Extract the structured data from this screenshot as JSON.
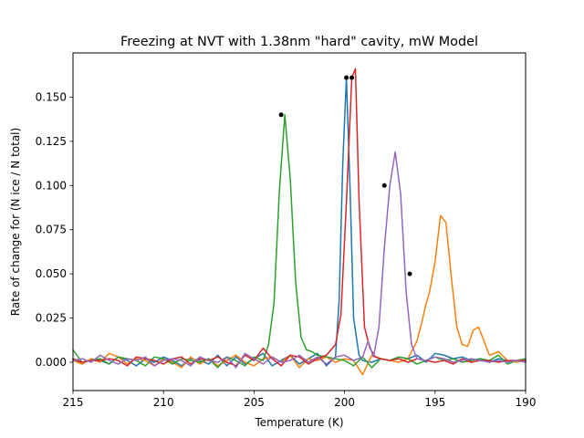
{
  "chart_data": {
    "type": "line",
    "title": "Freezing at NVT with 1.38nm \"hard\" cavity, mW Model",
    "xlabel": "Temperature (K)",
    "ylabel": "Rate of change for (N ice / N total)",
    "xlim": [
      215,
      190
    ],
    "ylim": [
      -0.016,
      0.175
    ],
    "x_ticks": [
      215,
      210,
      205,
      200,
      195,
      190
    ],
    "y_ticks": [
      0.0,
      0.025,
      0.05,
      0.075,
      0.1,
      0.125,
      0.15
    ],
    "y_tick_labels": [
      "0.000",
      "0.025",
      "0.050",
      "0.075",
      "0.100",
      "0.125",
      "0.150"
    ],
    "grid": false,
    "series": [
      {
        "color": "#1f77b4",
        "points": [
          [
            215,
            0.002
          ],
          [
            214.5,
            -0.001
          ],
          [
            214,
            0.002
          ],
          [
            213.5,
            0.001
          ],
          [
            213,
            -0.001
          ],
          [
            212.5,
            0.003
          ],
          [
            212,
            0.001
          ],
          [
            211.5,
            -0.002
          ],
          [
            211,
            0.002
          ],
          [
            210.5,
            0.0
          ],
          [
            210,
            0.003
          ],
          [
            209.5,
            0.001
          ],
          [
            209,
            -0.002
          ],
          [
            208.5,
            0.002
          ],
          [
            208,
            0.001
          ],
          [
            207.5,
            -0.001
          ],
          [
            207,
            0.004
          ],
          [
            206.5,
            -0.002
          ],
          [
            206,
            0.003
          ],
          [
            205.5,
            -0.001
          ],
          [
            205,
            0.002
          ],
          [
            204.5,
            0.005
          ],
          [
            204,
            -0.002
          ],
          [
            203.5,
            0.001
          ],
          [
            203,
            0.004
          ],
          [
            202.5,
            -0.001
          ],
          [
            202,
            0.002
          ],
          [
            201.5,
            0.005
          ],
          [
            201,
            -0.002
          ],
          [
            200.5,
            0.003
          ],
          [
            200.3,
            0.035
          ],
          [
            200.1,
            0.112
          ],
          [
            199.9,
            0.161
          ],
          [
            199.7,
            0.1
          ],
          [
            199.5,
            0.025
          ],
          [
            199.2,
            0.004
          ],
          [
            199,
            0.001
          ],
          [
            198.5,
            0.0
          ],
          [
            198,
            0.002
          ],
          [
            197.5,
            0.001
          ],
          [
            197,
            0.003
          ],
          [
            196.5,
            0.002
          ],
          [
            196,
            0.004
          ],
          [
            195.5,
            0.0
          ],
          [
            195,
            0.005
          ],
          [
            194.5,
            0.004
          ],
          [
            194,
            0.002
          ],
          [
            193.5,
            0.003
          ],
          [
            193,
            0.001
          ],
          [
            192.5,
            0.002
          ],
          [
            192,
            0.0
          ],
          [
            191.5,
            0.002
          ],
          [
            191,
            0.001
          ],
          [
            190.5,
            0.001
          ],
          [
            190,
            0.001
          ]
        ]
      },
      {
        "color": "#ff7f0e",
        "points": [
          [
            215,
            0.001
          ],
          [
            214.5,
            -0.001
          ],
          [
            214,
            0.002
          ],
          [
            213.5,
            0.0
          ],
          [
            213,
            0.005
          ],
          [
            212.5,
            0.003
          ],
          [
            212,
            -0.001
          ],
          [
            211.5,
            0.002
          ],
          [
            211,
            0.001
          ],
          [
            210.5,
            -0.002
          ],
          [
            210,
            0.002
          ],
          [
            209.5,
            0.0
          ],
          [
            209,
            -0.003
          ],
          [
            208.5,
            0.003
          ],
          [
            208,
            -0.001
          ],
          [
            207.5,
            0.002
          ],
          [
            207,
            -0.002
          ],
          [
            206.5,
            0.001
          ],
          [
            206,
            0.004
          ],
          [
            205.5,
            0.0
          ],
          [
            205,
            -0.002
          ],
          [
            204.5,
            0.002
          ],
          [
            204,
            0.003
          ],
          [
            203.5,
            0.0
          ],
          [
            203,
            0.004
          ],
          [
            202.5,
            -0.003
          ],
          [
            202,
            0.002
          ],
          [
            201.5,
            0.001
          ],
          [
            201,
            0.003
          ],
          [
            200.5,
            0.0
          ],
          [
            200,
            0.002
          ],
          [
            199.5,
            0.001
          ],
          [
            199,
            -0.007
          ],
          [
            198.5,
            0.004
          ],
          [
            198,
            0.002
          ],
          [
            197.5,
            0.001
          ],
          [
            197,
            0.0
          ],
          [
            196.5,
            0.002
          ],
          [
            196,
            0.012
          ],
          [
            195.7,
            0.024
          ],
          [
            195.5,
            0.033
          ],
          [
            195.3,
            0.04
          ],
          [
            195,
            0.057
          ],
          [
            194.7,
            0.083
          ],
          [
            194.4,
            0.079
          ],
          [
            194.1,
            0.048
          ],
          [
            193.8,
            0.02
          ],
          [
            193.5,
            0.01
          ],
          [
            193.2,
            0.009
          ],
          [
            192.9,
            0.018
          ],
          [
            192.6,
            0.02
          ],
          [
            192.3,
            0.012
          ],
          [
            192,
            0.004
          ],
          [
            191.5,
            0.006
          ],
          [
            191,
            0.001
          ],
          [
            190.5,
            0.0
          ],
          [
            190,
            0.001
          ]
        ]
      },
      {
        "color": "#2ca02c",
        "points": [
          [
            215,
            0.007
          ],
          [
            214.5,
            0.0
          ],
          [
            214,
            0.001
          ],
          [
            213.5,
            0.002
          ],
          [
            213,
            -0.001
          ],
          [
            212.5,
            0.003
          ],
          [
            212,
            0.002
          ],
          [
            211.5,
            0.001
          ],
          [
            211,
            -0.002
          ],
          [
            210.5,
            0.003
          ],
          [
            210,
            0.002
          ],
          [
            209.5,
            -0.001
          ],
          [
            209,
            0.002
          ],
          [
            208.5,
            0.001
          ],
          [
            208,
            0.0
          ],
          [
            207.5,
            0.002
          ],
          [
            207,
            -0.003
          ],
          [
            206.5,
            0.003
          ],
          [
            206,
            0.001
          ],
          [
            205.5,
            -0.002
          ],
          [
            205,
            0.003
          ],
          [
            204.5,
            0.001
          ],
          [
            204.2,
            0.01
          ],
          [
            203.9,
            0.033
          ],
          [
            203.6,
            0.097
          ],
          [
            203.3,
            0.14
          ],
          [
            203,
            0.104
          ],
          [
            202.7,
            0.045
          ],
          [
            202.4,
            0.014
          ],
          [
            202.1,
            0.007
          ],
          [
            201.8,
            0.006
          ],
          [
            201.5,
            0.004
          ],
          [
            201,
            0.003
          ],
          [
            200.5,
            0.002
          ],
          [
            200,
            0.001
          ],
          [
            199.5,
            -0.002
          ],
          [
            199,
            0.003
          ],
          [
            198.5,
            -0.003
          ],
          [
            198,
            0.002
          ],
          [
            197.5,
            0.001
          ],
          [
            197,
            0.003
          ],
          [
            196.5,
            0.002
          ],
          [
            196,
            -0.001
          ],
          [
            195.5,
            0.001
          ],
          [
            195,
            0.003
          ],
          [
            194.5,
            0.001
          ],
          [
            194,
            0.002
          ],
          [
            193.5,
            0.0
          ],
          [
            193,
            0.001
          ],
          [
            192.5,
            0.002
          ],
          [
            192,
            0.001
          ],
          [
            191.5,
            0.004
          ],
          [
            191,
            -0.001
          ],
          [
            190.5,
            0.001
          ],
          [
            190,
            0.002
          ]
        ]
      },
      {
        "color": "#d62728",
        "points": [
          [
            215,
            0.002
          ],
          [
            214.5,
            0.0
          ],
          [
            214,
            0.001
          ],
          [
            213.5,
            0.001
          ],
          [
            213,
            0.002
          ],
          [
            212.5,
            0.001
          ],
          [
            212,
            -0.002
          ],
          [
            211.5,
            0.003
          ],
          [
            211,
            0.002
          ],
          [
            210.5,
            0.001
          ],
          [
            210,
            -0.001
          ],
          [
            209.5,
            0.002
          ],
          [
            209,
            0.003
          ],
          [
            208.5,
            -0.001
          ],
          [
            208,
            0.002
          ],
          [
            207.5,
            0.001
          ],
          [
            207,
            0.003
          ],
          [
            206.5,
            0.0
          ],
          [
            206,
            -0.002
          ],
          [
            205.5,
            0.004
          ],
          [
            205,
            0.001
          ],
          [
            204.5,
            0.008
          ],
          [
            204,
            0.002
          ],
          [
            203.5,
            -0.002
          ],
          [
            203,
            0.004
          ],
          [
            202.5,
            0.003
          ],
          [
            202,
            -0.001
          ],
          [
            201.5,
            0.002
          ],
          [
            201,
            0.004
          ],
          [
            200.5,
            0.01
          ],
          [
            200.2,
            0.027
          ],
          [
            199.9,
            0.09
          ],
          [
            199.6,
            0.161
          ],
          [
            199.4,
            0.166
          ],
          [
            199.2,
            0.092
          ],
          [
            198.9,
            0.02
          ],
          [
            198.6,
            0.008
          ],
          [
            198.3,
            0.003
          ],
          [
            198,
            0.002
          ],
          [
            197.5,
            0.001
          ],
          [
            197,
            0.002
          ],
          [
            196.5,
            0.0
          ],
          [
            196,
            0.002
          ],
          [
            195.5,
            0.001
          ],
          [
            195,
            0.0
          ],
          [
            194.5,
            0.001
          ],
          [
            194,
            -0.001
          ],
          [
            193.5,
            0.002
          ],
          [
            193,
            0.0
          ],
          [
            192.5,
            0.001
          ],
          [
            192,
            0.001
          ],
          [
            191.5,
            0.0
          ],
          [
            191,
            0.001
          ],
          [
            190.5,
            0.001
          ],
          [
            190,
            0.001
          ]
        ]
      },
      {
        "color": "#9467bd",
        "points": [
          [
            215,
            0.001
          ],
          [
            214.5,
            0.002
          ],
          [
            214,
            0.0
          ],
          [
            213.5,
            0.004
          ],
          [
            213,
            0.001
          ],
          [
            212.5,
            -0.001
          ],
          [
            212,
            0.002
          ],
          [
            211.5,
            0.001
          ],
          [
            211,
            0.003
          ],
          [
            210.5,
            -0.002
          ],
          [
            210,
            0.001
          ],
          [
            209.5,
            0.002
          ],
          [
            209,
            0.001
          ],
          [
            208.5,
            -0.002
          ],
          [
            208,
            0.003
          ],
          [
            207.5,
            0.001
          ],
          [
            207,
            0.0
          ],
          [
            206.5,
            0.003
          ],
          [
            206,
            -0.003
          ],
          [
            205.5,
            0.005
          ],
          [
            205,
            0.002
          ],
          [
            204.5,
            -0.001
          ],
          [
            204,
            0.003
          ],
          [
            203.5,
            0.0
          ],
          [
            203,
            0.001
          ],
          [
            202.5,
            0.004
          ],
          [
            202,
            0.0
          ],
          [
            201.5,
            0.003
          ],
          [
            201,
            -0.001
          ],
          [
            200.5,
            0.003
          ],
          [
            200,
            0.004
          ],
          [
            199.5,
            0.001
          ],
          [
            199,
            0.003
          ],
          [
            198.7,
            0.012
          ],
          [
            198.4,
            0.003
          ],
          [
            198.1,
            0.02
          ],
          [
            197.8,
            0.065
          ],
          [
            197.5,
            0.1
          ],
          [
            197.2,
            0.119
          ],
          [
            196.9,
            0.095
          ],
          [
            196.6,
            0.04
          ],
          [
            196.3,
            0.01
          ],
          [
            196,
            0.002
          ],
          [
            195.5,
            0.001
          ],
          [
            195,
            0.003
          ],
          [
            194.5,
            0.002
          ],
          [
            194,
            0.0
          ],
          [
            193.5,
            0.001
          ],
          [
            193,
            0.002
          ],
          [
            192.5,
            0.001
          ],
          [
            192,
            0.0
          ],
          [
            191.5,
            0.001
          ],
          [
            191,
            0.0
          ],
          [
            190.5,
            0.001
          ],
          [
            190,
            0.0
          ]
        ]
      }
    ],
    "markers": [
      [
        203.5,
        0.14
      ],
      [
        199.9,
        0.161
      ],
      [
        199.6,
        0.161
      ],
      [
        197.8,
        0.1
      ],
      [
        196.4,
        0.05
      ]
    ]
  }
}
